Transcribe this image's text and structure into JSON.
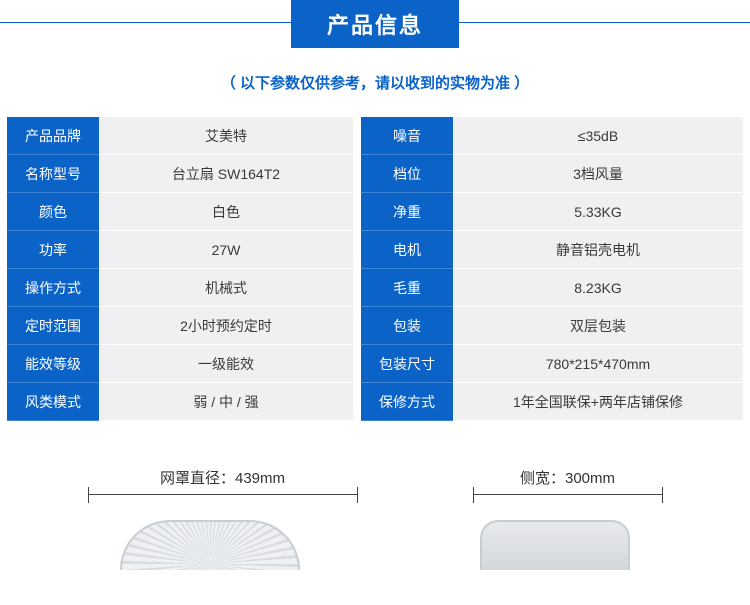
{
  "header": {
    "title": "产品信息",
    "subtitle": "（  以下参数仅供参考，请以收到的实物为准  ）"
  },
  "colors": {
    "primary": "#0b63c8",
    "cell_bg": "#f0f0f2",
    "text": "#3a3a3a"
  },
  "table": {
    "rows": [
      {
        "l_label": "产品品牌",
        "l_value": "艾美特",
        "r_label": "噪音",
        "r_value": "≤35dB"
      },
      {
        "l_label": "名称型号",
        "l_value": "台立扇 SW164T2",
        "r_label": "档位",
        "r_value": "3档风量"
      },
      {
        "l_label": "颜色",
        "l_value": "白色",
        "r_label": "净重",
        "r_value": "5.33KG"
      },
      {
        "l_label": "功率",
        "l_value": "27W",
        "r_label": "电机",
        "r_value": "静音铝壳电机"
      },
      {
        "l_label": "操作方式",
        "l_value": "机械式",
        "r_label": "毛重",
        "r_value": "8.23KG"
      },
      {
        "l_label": "定时范围",
        "l_value": "2小时预约定时",
        "r_label": "包装",
        "r_value": "双层包装"
      },
      {
        "l_label": "能效等级",
        "l_value": "一级能效",
        "r_label": "包装尺寸",
        "r_value": "780*215*470mm"
      },
      {
        "l_label": "风类模式",
        "l_value": "弱 / 中 / 强",
        "r_label": "保修方式",
        "r_value": "1年全国联保+两年店铺保修"
      }
    ]
  },
  "dimensions": {
    "front": {
      "label": "网罩直径：439mm"
    },
    "side": {
      "label": "侧宽：300mm"
    }
  }
}
